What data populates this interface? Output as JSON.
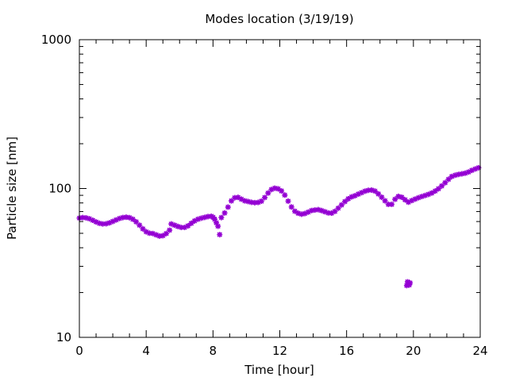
{
  "chart_data": {
    "type": "scatter",
    "title": "Modes location (3/19/19)",
    "xlabel": "Time [hour]",
    "ylabel": "Particle size [nm]",
    "xlim": [
      0,
      24
    ],
    "ylim": [
      10,
      1000
    ],
    "yscale": "log",
    "xticks": [
      0,
      4,
      8,
      12,
      16,
      20,
      24
    ],
    "yticks": [
      10,
      100,
      1000
    ],
    "ytick_labels": [
      "10",
      "100",
      "1000"
    ],
    "grid": false,
    "legend": "none",
    "marker_color": "#9400d3",
    "series": [
      {
        "points": [
          [
            0.0,
            63.3
          ],
          [
            0.2,
            63.8
          ],
          [
            0.4,
            63.5
          ],
          [
            0.6,
            62.6
          ],
          [
            0.8,
            61.2
          ],
          [
            1.0,
            59.6
          ],
          [
            1.2,
            58.4
          ],
          [
            1.4,
            57.8
          ],
          [
            1.6,
            58.0
          ],
          [
            1.8,
            58.8
          ],
          [
            2.0,
            60.1
          ],
          [
            2.2,
            61.5
          ],
          [
            2.4,
            62.9
          ],
          [
            2.6,
            63.8
          ],
          [
            2.8,
            64.2
          ],
          [
            3.0,
            63.7
          ],
          [
            3.2,
            62.2
          ],
          [
            3.4,
            59.7
          ],
          [
            3.6,
            56.7
          ],
          [
            3.8,
            53.6
          ],
          [
            4.0,
            51.2
          ],
          [
            4.2,
            50.1
          ],
          [
            4.4,
            49.8
          ],
          [
            4.6,
            48.8
          ],
          [
            4.8,
            47.9
          ],
          [
            5.0,
            48.2
          ],
          [
            5.2,
            49.8
          ],
          [
            5.4,
            52.5
          ],
          [
            5.5,
            57.8
          ],
          [
            5.7,
            56.7
          ],
          [
            5.9,
            55.6
          ],
          [
            6.1,
            54.8
          ],
          [
            6.3,
            54.8
          ],
          [
            6.5,
            56.1
          ],
          [
            6.7,
            58.4
          ],
          [
            6.9,
            60.6
          ],
          [
            7.1,
            62.2
          ],
          [
            7.3,
            63.2
          ],
          [
            7.5,
            64.0
          ],
          [
            7.7,
            64.8
          ],
          [
            7.9,
            65.1
          ],
          [
            8.0,
            64.1
          ],
          [
            8.1,
            62.2
          ],
          [
            8.2,
            58.9
          ],
          [
            8.3,
            55.8
          ],
          [
            8.4,
            49.0
          ],
          [
            8.5,
            63.8
          ],
          [
            8.7,
            68.5
          ],
          [
            8.9,
            75.0
          ],
          [
            9.1,
            82.6
          ],
          [
            9.3,
            86.7
          ],
          [
            9.5,
            87.2
          ],
          [
            9.7,
            84.8
          ],
          [
            9.9,
            82.7
          ],
          [
            10.1,
            81.8
          ],
          [
            10.3,
            80.8
          ],
          [
            10.5,
            80.3
          ],
          [
            10.7,
            80.6
          ],
          [
            10.9,
            82.2
          ],
          [
            11.1,
            87.0
          ],
          [
            11.3,
            93.3
          ],
          [
            11.5,
            98.5
          ],
          [
            11.7,
            100.5
          ],
          [
            11.9,
            99.5
          ],
          [
            12.1,
            96.3
          ],
          [
            12.3,
            90.3
          ],
          [
            12.5,
            82.3
          ],
          [
            12.7,
            75.2
          ],
          [
            12.9,
            70.4
          ],
          [
            13.1,
            68.2
          ],
          [
            13.3,
            67.2
          ],
          [
            13.5,
            67.9
          ],
          [
            13.7,
            69.4
          ],
          [
            13.9,
            71.1
          ],
          [
            14.1,
            71.7
          ],
          [
            14.3,
            72.1
          ],
          [
            14.5,
            71.1
          ],
          [
            14.7,
            69.8
          ],
          [
            14.9,
            68.6
          ],
          [
            15.1,
            68.3
          ],
          [
            15.3,
            70.2
          ],
          [
            15.5,
            73.8
          ],
          [
            15.7,
            77.6
          ],
          [
            15.9,
            81.7
          ],
          [
            16.1,
            85.3
          ],
          [
            16.3,
            87.9
          ],
          [
            16.5,
            89.4
          ],
          [
            16.7,
            91.7
          ],
          [
            16.9,
            93.8
          ],
          [
            17.1,
            96.0
          ],
          [
            17.3,
            97.3
          ],
          [
            17.5,
            97.6
          ],
          [
            17.7,
            96.1
          ],
          [
            17.9,
            92.0
          ],
          [
            18.1,
            87.4
          ],
          [
            18.3,
            82.7
          ],
          [
            18.5,
            78.3
          ],
          [
            18.7,
            78.3
          ],
          [
            18.9,
            84.7
          ],
          [
            19.1,
            88.6
          ],
          [
            19.3,
            87.4
          ],
          [
            19.5,
            84.0
          ],
          [
            19.7,
            80.9
          ],
          [
            19.9,
            83.0
          ],
          [
            20.1,
            84.9
          ],
          [
            20.3,
            86.7
          ],
          [
            20.5,
            88.3
          ],
          [
            20.7,
            89.8
          ],
          [
            20.9,
            91.4
          ],
          [
            21.1,
            93.3
          ],
          [
            21.3,
            96.1
          ],
          [
            21.5,
            99.6
          ],
          [
            21.7,
            104.1
          ],
          [
            21.9,
            109.4
          ],
          [
            22.1,
            115.3
          ],
          [
            22.3,
            120.5
          ],
          [
            22.5,
            122.8
          ],
          [
            22.7,
            124.4
          ],
          [
            22.9,
            125.5
          ],
          [
            23.1,
            126.8
          ],
          [
            23.3,
            129.0
          ],
          [
            23.5,
            132.5
          ],
          [
            23.7,
            135.3
          ],
          [
            23.9,
            137.9
          ],
          [
            19.6,
            22.3
          ],
          [
            19.7,
            22.7
          ],
          [
            19.8,
            23.2
          ],
          [
            19.65,
            23.6
          ],
          [
            19.75,
            22.5
          ]
        ]
      }
    ]
  }
}
